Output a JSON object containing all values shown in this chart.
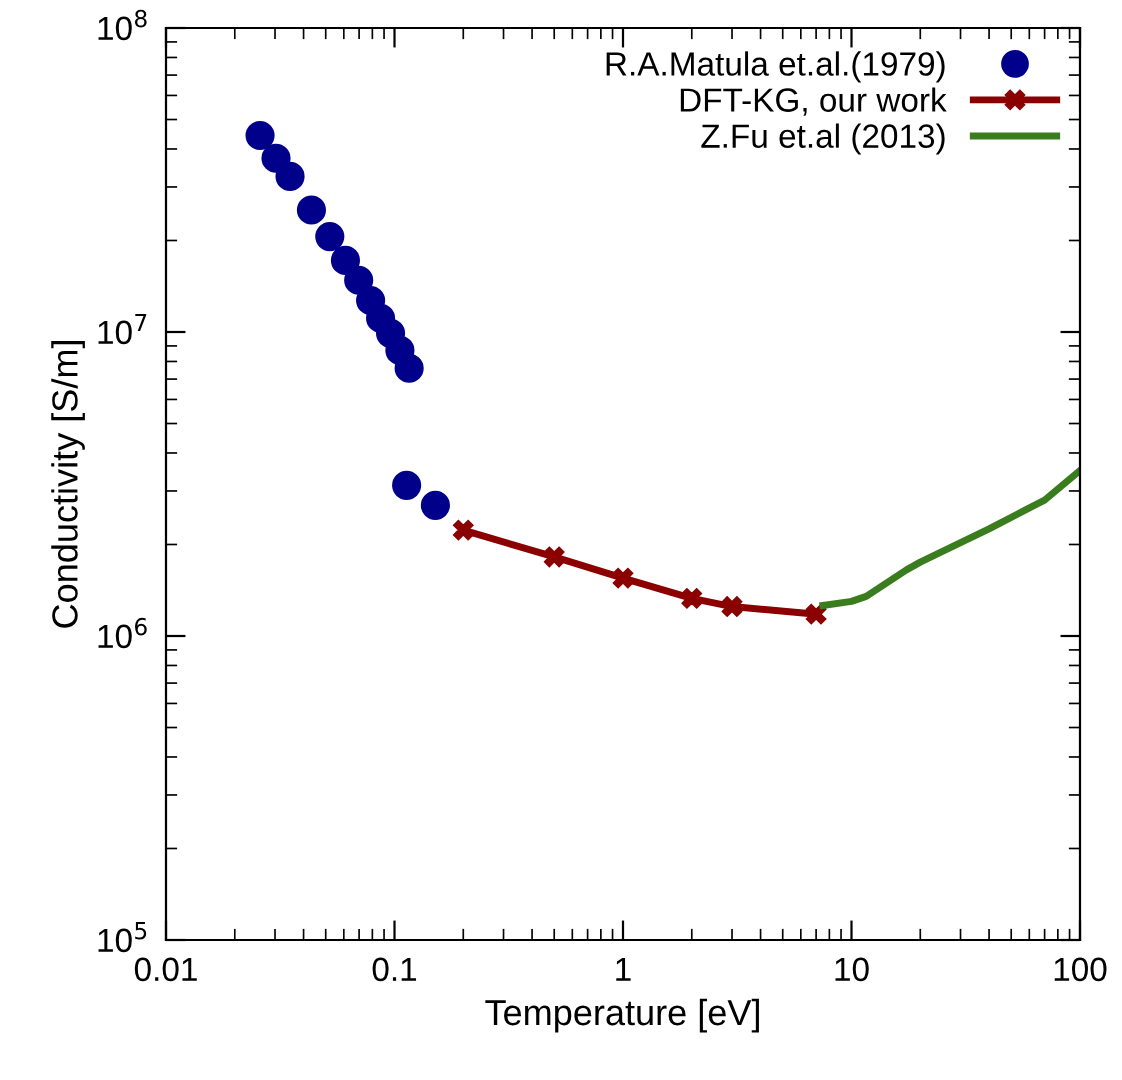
{
  "chart_data": {
    "type": "line",
    "xlabel": "Temperature [eV]",
    "ylabel": "Conductivity [S/m]",
    "log": "xy",
    "xlim": [
      0.01,
      100
    ],
    "ylim": [
      100000,
      100000000
    ],
    "xticks": [
      0.01,
      0.1,
      1,
      10,
      100
    ],
    "yticks": [
      {
        "value": 100000,
        "label": "10$^{5}$"
      },
      {
        "value": 1000000,
        "label": "10$^{6}$"
      },
      {
        "value": 10000000,
        "label": "10$^{7}$"
      },
      {
        "value": 100000000,
        "label": "10$^{8}$"
      }
    ],
    "grid": false,
    "legend": "top right",
    "series": [
      {
        "name": "R.A.Matula et.al.(1979)",
        "type": "scatter",
        "marker": "circle",
        "color": "#00008b",
        "x": [
          0.0258,
          0.0303,
          0.0349,
          0.0433,
          0.0521,
          0.061,
          0.0697,
          0.0786,
          0.0869,
          0.0961,
          0.1056,
          0.1159,
          0.113,
          0.151
        ],
        "values": [
          44300000,
          37300000,
          32500000,
          25200000,
          20600000,
          17200000,
          14800000,
          12700000,
          11100000,
          9900000,
          8700000,
          7600000,
          3130000,
          2690000
        ]
      },
      {
        "name": "DFT-KG, our work",
        "marker": "cross",
        "line_style": "solid",
        "color": "#8b0000",
        "x": [
          0.2,
          0.5,
          1,
          2,
          3,
          7
        ],
        "values": [
          2230000,
          1820000,
          1550000,
          1330000,
          1250000,
          1180000
        ]
      },
      {
        "name": "Z.Fu et.al (2013)",
        "marker": "none",
        "line_style": "solid",
        "color": "#3a7d1e",
        "x": [
          7.5,
          10,
          11.6,
          17.4,
          20,
          29.7,
          40,
          57.8,
          70,
          100
        ],
        "values": [
          1260000,
          1300000,
          1350000,
          1650000,
          1750000,
          2020000,
          2250000,
          2600000,
          2800000,
          3500000
        ]
      }
    ]
  }
}
